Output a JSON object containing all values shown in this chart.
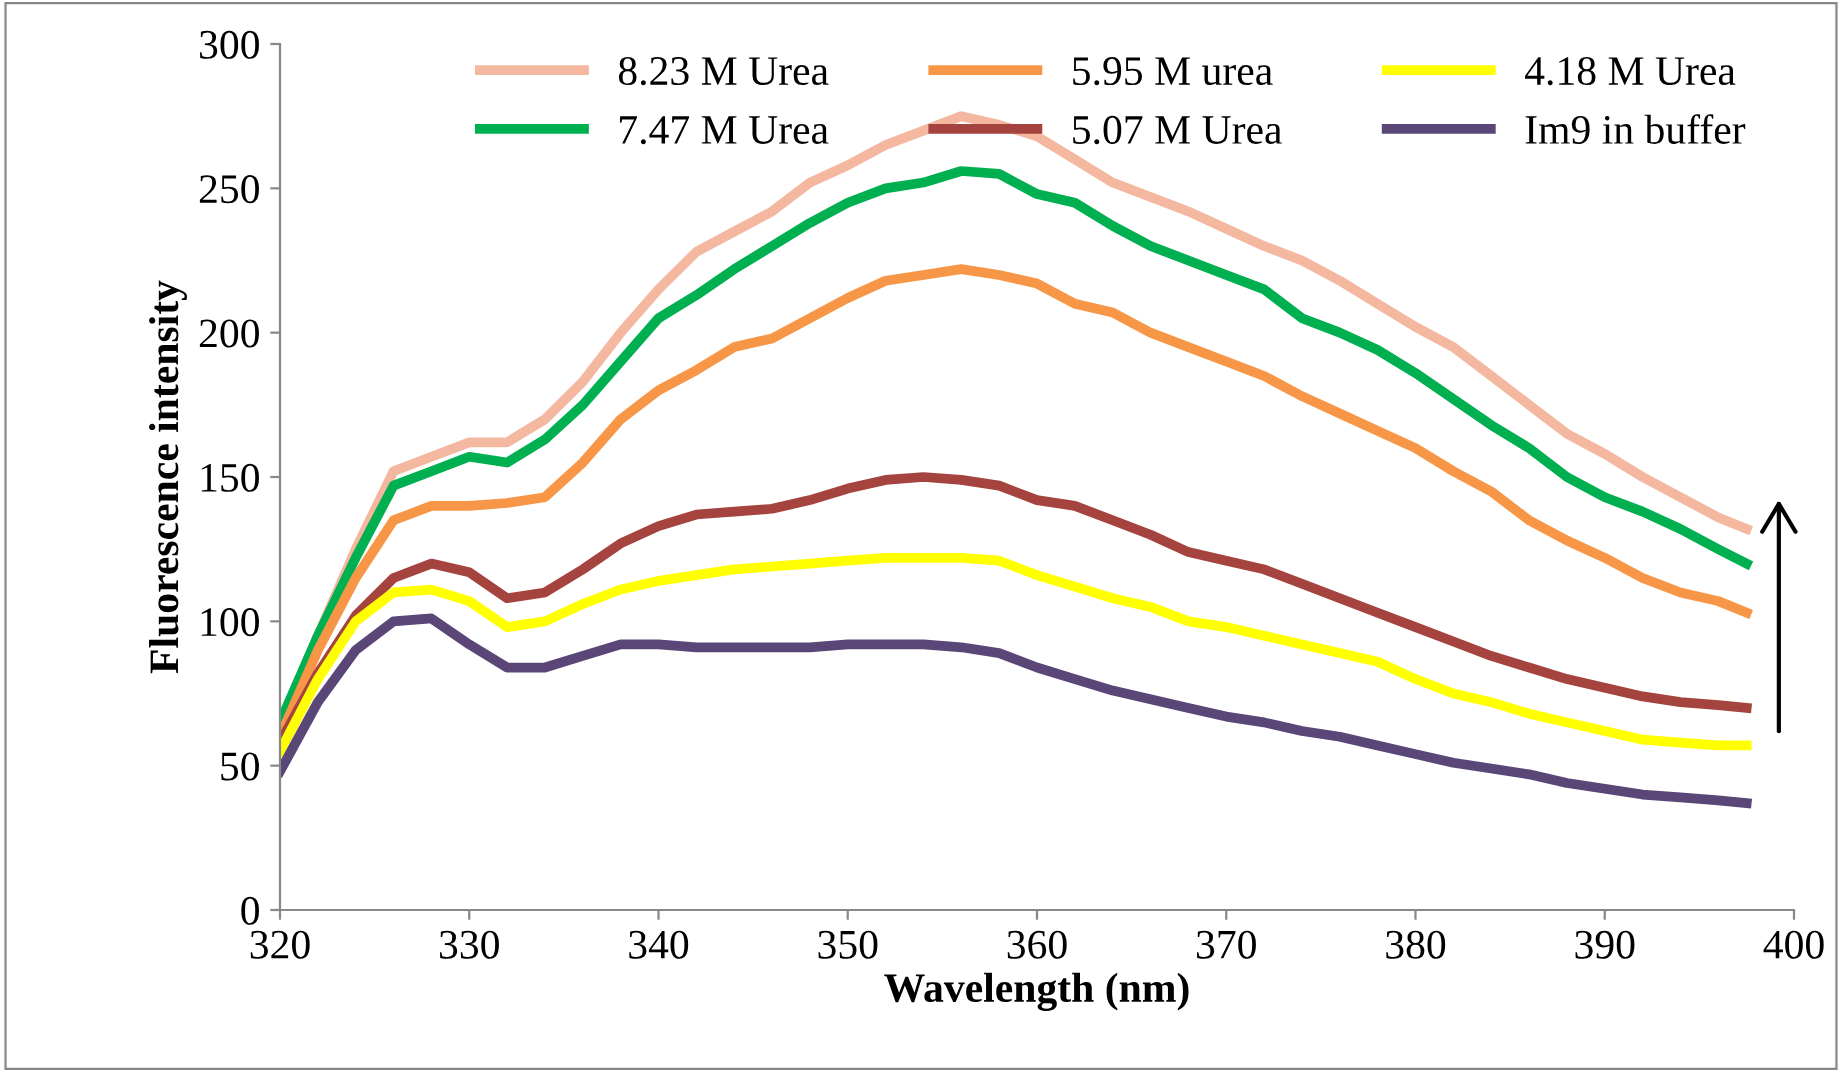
{
  "chart_data": {
    "type": "line",
    "xlabel": "Wavelength (nm)",
    "ylabel": "Fluorescence intensity",
    "xlim": [
      320,
      400
    ],
    "xticks": [
      320,
      330,
      340,
      350,
      360,
      370,
      380,
      390,
      400
    ],
    "ylim": [
      0,
      300
    ],
    "yticks": [
      0,
      50,
      100,
      150,
      200,
      250,
      300
    ],
    "grid": false,
    "legend": "top",
    "marker": "none",
    "line_style": "solid",
    "x": [
      320,
      322,
      324,
      326,
      328,
      330,
      332,
      334,
      336,
      338,
      340,
      342,
      344,
      346,
      348,
      350,
      352,
      354,
      356,
      358,
      360,
      362,
      364,
      366,
      368,
      370,
      372,
      374,
      376,
      378,
      380,
      382,
      384,
      386,
      388,
      390,
      392,
      394,
      396,
      397.5
    ],
    "series": [
      {
        "name": "8.23 M Urea",
        "color": "#f4b8a0",
        "values": [
          null,
          95,
          125,
          152,
          157,
          162,
          162,
          170,
          183,
          200,
          215,
          228,
          235,
          242,
          252,
          258,
          265,
          270,
          275,
          272,
          268,
          260,
          252,
          247,
          242,
          236,
          230,
          225,
          218,
          210,
          202,
          195,
          185,
          175,
          165,
          158,
          150,
          143,
          136,
          132
        ]
      },
      {
        "name": "7.47 M Urea",
        "color": "#00b050",
        "values": [
          65,
          95,
          122,
          147,
          152,
          157,
          155,
          163,
          175,
          190,
          205,
          213,
          222,
          230,
          238,
          245,
          250,
          252,
          256,
          255,
          248,
          245,
          237,
          230,
          225,
          220,
          215,
          205,
          200,
          194,
          186,
          177,
          168,
          160,
          150,
          143,
          138,
          132,
          125,
          120
        ]
      },
      {
        "name": "5.95 M urea",
        "color": "#f79646",
        "values": [
          60,
          90,
          115,
          135,
          140,
          140,
          141,
          143,
          155,
          170,
          180,
          187,
          195,
          198,
          205,
          212,
          218,
          220,
          222,
          220,
          217,
          210,
          207,
          200,
          195,
          190,
          185,
          178,
          172,
          166,
          160,
          152,
          145,
          135,
          128,
          122,
          115,
          110,
          107,
          103
        ]
      },
      {
        "name": "5.07 M Urea",
        "color": "#a5443f",
        "values": [
          58,
          82,
          102,
          115,
          120,
          117,
          108,
          110,
          118,
          127,
          133,
          137,
          138,
          139,
          142,
          146,
          149,
          150,
          149,
          147,
          142,
          140,
          135,
          130,
          124,
          121,
          118,
          113,
          108,
          103,
          98,
          93,
          88,
          84,
          80,
          77,
          74,
          72,
          71,
          70
        ]
      },
      {
        "name": "4.18 M Urea",
        "color": "#ffff00",
        "values": [
          55,
          80,
          100,
          110,
          111,
          107,
          98,
          100,
          106,
          111,
          114,
          116,
          118,
          119,
          120,
          121,
          122,
          122,
          122,
          121,
          116,
          112,
          108,
          105,
          100,
          98,
          95,
          92,
          89,
          86,
          80,
          75,
          72,
          68,
          65,
          62,
          59,
          58,
          57,
          57
        ]
      },
      {
        "name": "Im9 in buffer",
        "color": "#5a4778",
        "values": [
          48,
          72,
          90,
          100,
          101,
          92,
          84,
          84,
          88,
          92,
          92,
          91,
          91,
          91,
          91,
          92,
          92,
          92,
          91,
          89,
          84,
          80,
          76,
          73,
          70,
          67,
          65,
          62,
          60,
          57,
          54,
          51,
          49,
          47,
          44,
          42,
          40,
          39,
          38,
          37
        ]
      }
    ]
  }
}
